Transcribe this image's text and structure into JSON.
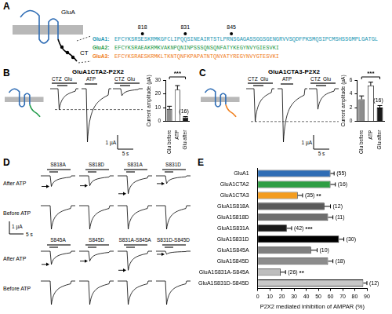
{
  "panels": {
    "A": {
      "letter": "A",
      "protein_label": "GluA",
      "ct_label": "CT",
      "sites": [
        818,
        831,
        845
      ],
      "sequences": [
        {
          "name": "GluA1:",
          "text": "EFCYKSRSESKRMKGFCLIPQQSINEAIRTSTLPRNSGAGASSGGSGENGRVVSQDFPKSMQSIPCMSHSSGMPLGATGL",
          "color": "#1996b3"
        },
        {
          "name": "GluA2:",
          "text": "EFCYKSRAEAKRMKVAKNPQNINPSSSQNSQNFATYKEGYNVYGIESVKI",
          "color": "#1f9a48"
        },
        {
          "name": "GluA3:",
          "text": "EFCYKSRAESKRMKLTKNTQNFKPAPATNTQNYATYREGYNVYGTESVKI",
          "color": "#f07d1a"
        }
      ]
    },
    "B": {
      "letter": "B",
      "title": "GluA1CTA2-P2X2",
      "drug_labels": [
        "CTZ",
        "Glu",
        "ATP",
        "CTZ",
        "Glu"
      ],
      "scale_bars": [
        "5 s",
        "1 µA"
      ],
      "color": "#1f9a48"
    },
    "C": {
      "letter": "C",
      "title": "GluA1CTA3-P2X2",
      "drug_labels": [
        "CTZ",
        "Glu",
        "ATP",
        "CTZ",
        "Glu"
      ],
      "scale_bars": [
        "5 s",
        "1 µA"
      ],
      "color": "#f07d1a"
    },
    "D": {
      "letter": "D",
      "row_labels": [
        "After ATP",
        "Before ATP"
      ],
      "mutants": [
        "S818A",
        "S818D",
        "S831A",
        "S831D",
        "S845A",
        "S845D",
        "S831A-S845A",
        "S831D-S845D"
      ],
      "scale_bars": [
        "5 s",
        "1 µA"
      ]
    },
    "E": {
      "letter": "E"
    }
  },
  "chart_data": [
    {
      "type": "bar",
      "categories": [
        "Glu before",
        "ATP",
        "Glu after"
      ],
      "values": [
        9,
        23,
        3
      ],
      "errors": [
        2,
        3,
        0.5
      ],
      "colors": [
        "#8c8c8c",
        "#ffffff",
        "#1a1a1a"
      ],
      "ylabel": "Current amplitude (µA)",
      "ylim": [
        0,
        30
      ],
      "yticks": [
        0,
        10,
        20,
        30
      ],
      "grid": false,
      "significance": "***",
      "n_label": "(16)"
    },
    {
      "type": "bar",
      "categories": [
        "Glu before",
        "ATP",
        "Glu after"
      ],
      "values": [
        3.2,
        5.2,
        2.0
      ],
      "errors": [
        0.5,
        0.5,
        0.3
      ],
      "colors": [
        "#8c8c8c",
        "#ffffff",
        "#1a1a1a"
      ],
      "ylabel": "Current amplitude (µA)",
      "ylim": [
        0,
        6
      ],
      "yticks": [
        0,
        2,
        4,
        6
      ],
      "grid": false,
      "significance": "***",
      "n_label": "(16)"
    },
    {
      "type": "bar",
      "orientation": "horizontal",
      "categories": [
        "GluA1",
        "GluA1CTA2",
        "GluA1CTA3",
        "GluA1S818A",
        "GluA1S818D",
        "GluA1S831A",
        "GluA1S831D",
        "GluA1S845A",
        "GluA1S845D",
        "GluA1S831A-S845A",
        "GluA1S831D-S845D"
      ],
      "values": [
        60,
        60,
        33,
        55,
        58,
        24,
        67,
        44,
        58,
        19,
        87
      ],
      "errors": [
        3,
        4,
        4,
        5,
        4,
        4,
        4,
        5,
        4,
        4,
        3
      ],
      "n_labels": [
        "(55)",
        "(16)",
        "(35)",
        "(12)",
        "(11)",
        "(42)",
        "(30)",
        "(10)",
        "(18)",
        "(26)",
        "(12)"
      ],
      "significance": [
        null,
        null,
        "**",
        null,
        null,
        "***",
        null,
        null,
        null,
        "**",
        null
      ],
      "colors": [
        "#2f6db5",
        "#2e9e44",
        "#f39c1f",
        "#5a5a5a",
        "#6e6e6e",
        "#1a1a1a",
        "#000000",
        "#808080",
        "#8c8c8c",
        "#bdbdbd",
        "#c8c8c8"
      ],
      "xlabel": "P2X2 mediated inhibition of AMPAR (%)",
      "xlim": [
        0,
        90
      ],
      "xticks": [
        0,
        10,
        20,
        30,
        40,
        50,
        60,
        70,
        80,
        90
      ],
      "grid": false
    }
  ]
}
